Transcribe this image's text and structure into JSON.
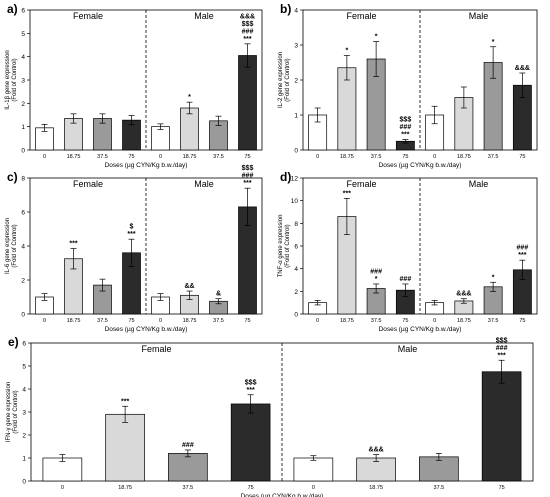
{
  "figure": {
    "xlabel": "Doses (µg CYN/Kg b.w./day)",
    "doses": [
      "0",
      "18.75",
      "37.5",
      "75"
    ],
    "group_titles": [
      "Female",
      "Male"
    ],
    "bar_colors": [
      "#ffffff",
      "#d9d9d9",
      "#9a9a9a",
      "#2b2b2b"
    ]
  },
  "chart_data": [
    {
      "type": "bar",
      "panel": "a)",
      "ylabel": [
        "IL-1β gene expression",
        "(Fold of Control)"
      ],
      "ylim": [
        0,
        6
      ],
      "yticks": [
        0,
        1,
        2,
        3,
        4,
        5,
        6
      ],
      "series": [
        {
          "name": "Female",
          "categories": [
            "0",
            "18.75",
            "37.5",
            "75"
          ],
          "values": [
            0.95,
            1.35,
            1.35,
            1.28
          ],
          "errors": [
            0.15,
            0.2,
            0.2,
            0.2
          ],
          "labels": [
            "",
            "",
            "",
            ""
          ]
        },
        {
          "name": "Male",
          "categories": [
            "0",
            "18.75",
            "37.5",
            "75"
          ],
          "values": [
            1.0,
            1.8,
            1.25,
            4.05
          ],
          "errors": [
            0.12,
            0.25,
            0.2,
            0.5
          ],
          "labels": [
            "",
            "*",
            "",
            "&&&\n$$$\n###\n***"
          ]
        }
      ]
    },
    {
      "type": "bar",
      "panel": "b)",
      "ylabel": [
        "IL-2 gene expression",
        "(Fold of Control)"
      ],
      "ylim": [
        0,
        4
      ],
      "yticks": [
        0,
        1,
        2,
        3,
        4
      ],
      "series": [
        {
          "name": "Female",
          "categories": [
            "0",
            "18.75",
            "37.5",
            "75"
          ],
          "values": [
            1.0,
            2.35,
            2.6,
            0.25
          ],
          "errors": [
            0.2,
            0.35,
            0.5,
            0.05
          ],
          "labels": [
            "",
            "*",
            "*",
            "$$$\n###\n***"
          ]
        },
        {
          "name": "Male",
          "categories": [
            "0",
            "18.75",
            "37.5",
            "75"
          ],
          "values": [
            1.0,
            1.5,
            2.5,
            1.85
          ],
          "errors": [
            0.25,
            0.3,
            0.45,
            0.35
          ],
          "labels": [
            "",
            "",
            "*",
            "&&&"
          ]
        }
      ]
    },
    {
      "type": "bar",
      "panel": "c)",
      "ylabel": [
        "IL-6 gene expression",
        "(Fold of Control)"
      ],
      "ylim": [
        0,
        8
      ],
      "yticks": [
        0,
        2,
        4,
        6,
        8
      ],
      "series": [
        {
          "name": "Female",
          "categories": [
            "0",
            "18.75",
            "37.5",
            "75"
          ],
          "values": [
            1.0,
            3.25,
            1.7,
            3.6
          ],
          "errors": [
            0.2,
            0.6,
            0.35,
            0.8
          ],
          "labels": [
            "",
            "***",
            "",
            "$\n***"
          ]
        },
        {
          "name": "Male",
          "categories": [
            "0",
            "18.75",
            "37.5",
            "75"
          ],
          "values": [
            1.0,
            1.1,
            0.75,
            6.3
          ],
          "errors": [
            0.2,
            0.25,
            0.15,
            1.1
          ],
          "labels": [
            "",
            "&&",
            "&",
            "$$$\n###\n***"
          ]
        }
      ]
    },
    {
      "type": "bar",
      "panel": "d)",
      "ylabel": [
        "TNF-α gene expression",
        "(Fold of Control)"
      ],
      "ylim": [
        0,
        12
      ],
      "yticks": [
        0,
        2,
        4,
        6,
        8,
        10,
        12
      ],
      "series": [
        {
          "name": "Female",
          "categories": [
            "0",
            "18.75",
            "37.5",
            "75"
          ],
          "values": [
            1.0,
            8.6,
            2.25,
            2.1
          ],
          "errors": [
            0.2,
            1.6,
            0.4,
            0.55
          ],
          "labels": [
            "",
            "***",
            "###\n*",
            "###"
          ]
        },
        {
          "name": "Male",
          "categories": [
            "0",
            "18.75",
            "37.5",
            "75"
          ],
          "values": [
            1.0,
            1.15,
            2.4,
            3.9
          ],
          "errors": [
            0.2,
            0.2,
            0.4,
            0.85
          ],
          "labels": [
            "",
            "&&&",
            "*",
            "###\n***"
          ]
        }
      ]
    },
    {
      "type": "bar",
      "panel": "e)",
      "ylabel": [
        "IFN-γ gene expression",
        "(Fold of Control)"
      ],
      "ylim": [
        0,
        6
      ],
      "yticks": [
        0,
        1,
        2,
        3,
        4,
        5,
        6
      ],
      "series": [
        {
          "name": "Female",
          "categories": [
            "0",
            "18.75",
            "37.5",
            "75"
          ],
          "values": [
            1.0,
            2.9,
            1.2,
            3.35
          ],
          "errors": [
            0.15,
            0.35,
            0.15,
            0.4
          ],
          "labels": [
            "",
            "***",
            "###",
            "$$$\n***"
          ]
        },
        {
          "name": "Male",
          "categories": [
            "0",
            "18.75",
            "37.5",
            "75"
          ],
          "values": [
            1.0,
            1.0,
            1.05,
            4.75
          ],
          "errors": [
            0.1,
            0.15,
            0.15,
            0.5
          ],
          "labels": [
            "",
            "&&&",
            "",
            "$$$\n###\n***"
          ]
        }
      ]
    }
  ]
}
